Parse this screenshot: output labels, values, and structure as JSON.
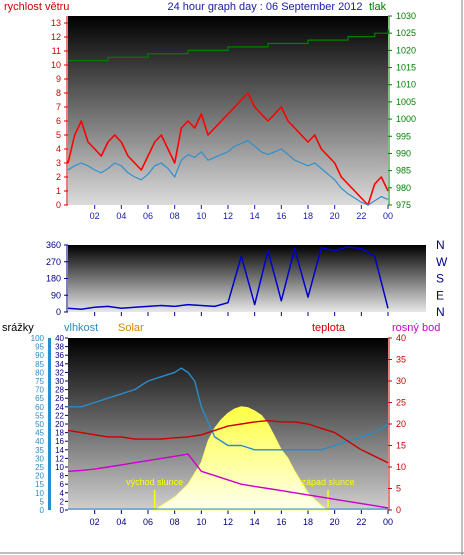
{
  "chart_data": [
    {
      "type": "line",
      "title": "24 hour graph day : 06 September 2012",
      "left_axis_label": "rychlost větru",
      "right_axis_label": "tlak",
      "x_ticks": [
        "02",
        "04",
        "06",
        "08",
        "10",
        "12",
        "14",
        "16",
        "18",
        "20",
        "22",
        "00"
      ],
      "left_ticks": [
        "0",
        "1",
        "2",
        "3",
        "4",
        "5",
        "6",
        "7",
        "8",
        "9",
        "10",
        "11",
        "12",
        "13"
      ],
      "right_ticks": [
        "975",
        "980",
        "985",
        "990",
        "995",
        "1000",
        "1005",
        "1010",
        "1015",
        "1020",
        "1025",
        "1030"
      ],
      "ylim_left": [
        0,
        13.5
      ],
      "ylim_right": [
        975,
        1030
      ],
      "colors": {
        "gust": "#ff0000",
        "speed": "#2f8fd0",
        "pressure": "#008000",
        "text_left": "#cc0000",
        "text_right": "#008000",
        "title": "#1a1aaa"
      },
      "series": [
        {
          "role": "gust",
          "x": [
            0,
            0.5,
            1,
            1.5,
            2,
            2.5,
            3,
            3.5,
            4,
            4.5,
            5,
            5.5,
            6,
            6.5,
            7,
            7.5,
            8,
            8.5,
            9,
            9.5,
            10,
            10.5,
            11,
            11.5,
            12,
            12.5,
            13,
            13.5,
            14,
            14.5,
            15,
            15.5,
            16,
            16.5,
            17,
            17.5,
            18,
            18.5,
            19,
            19.5,
            20,
            20.5,
            21,
            21.5,
            22,
            22.5,
            23,
            23.5,
            24
          ],
          "values": [
            3,
            5,
            6,
            4.5,
            4,
            3.5,
            4.5,
            5,
            4.5,
            3.5,
            3,
            2.5,
            3.5,
            4.5,
            5,
            4,
            3,
            5.5,
            6,
            5.5,
            6.5,
            5,
            5.5,
            6,
            6.5,
            7,
            7.5,
            8,
            7,
            6.5,
            6,
            6.5,
            7,
            6,
            5.5,
            5,
            4.5,
            5,
            4,
            3.5,
            3,
            2,
            1.5,
            1,
            0.5,
            0,
            1.5,
            2,
            1
          ]
        },
        {
          "role": "speed",
          "x": [
            0,
            0.5,
            1,
            1.5,
            2,
            2.5,
            3,
            3.5,
            4,
            4.5,
            5,
            5.5,
            6,
            6.5,
            7,
            7.5,
            8,
            8.5,
            9,
            9.5,
            10,
            10.5,
            11,
            11.5,
            12,
            12.5,
            13,
            13.5,
            14,
            14.5,
            15,
            15.5,
            16,
            16.5,
            17,
            17.5,
            18,
            18.5,
            19,
            19.5,
            20,
            20.5,
            21,
            21.5,
            22,
            22.5,
            23,
            23.5,
            24
          ],
          "values": [
            2.5,
            2.8,
            3,
            2.8,
            2.5,
            2.3,
            2.6,
            3,
            2.8,
            2.3,
            2,
            1.8,
            2.2,
            2.8,
            3,
            2.6,
            2,
            3.2,
            3.6,
            3.4,
            3.8,
            3.2,
            3.4,
            3.6,
            3.8,
            4.2,
            4.4,
            4.6,
            4.2,
            3.8,
            3.6,
            3.8,
            4,
            3.6,
            3.2,
            3,
            2.8,
            3,
            2.6,
            2.2,
            1.8,
            1.2,
            0.8,
            0.5,
            0.2,
            0,
            0.3,
            0.6,
            0.4
          ]
        },
        {
          "role": "pressure",
          "x": [
            0,
            2,
            3,
            5,
            6,
            8,
            9,
            11,
            12,
            14,
            15,
            17,
            18,
            20,
            21,
            22,
            23,
            24
          ],
          "values": [
            1017,
            1017,
            1018,
            1018,
            1019,
            1019,
            1020,
            1020,
            1021,
            1021,
            1022,
            1022,
            1023,
            1023,
            1024,
            1024,
            1025,
            1026
          ]
        }
      ]
    },
    {
      "type": "line",
      "title": "",
      "x_ticks": [
        "02",
        "04",
        "06",
        "08",
        "10",
        "12",
        "14",
        "16",
        "18",
        "20",
        "22",
        "00"
      ],
      "left_ticks": [
        "0",
        "90",
        "180",
        "270",
        "360"
      ],
      "right_ticks": [
        "N",
        "W",
        "S",
        "E",
        "N"
      ],
      "ylim_left": [
        0,
        360
      ],
      "colors": {
        "direction": "#0000cc",
        "text": "#000080"
      },
      "series": [
        {
          "role": "direction",
          "x": [
            0,
            1,
            2,
            3,
            4,
            5,
            6,
            7,
            8,
            9,
            10,
            11,
            12,
            13,
            14,
            15,
            16,
            17,
            18,
            19,
            20,
            21,
            22,
            23,
            24
          ],
          "values": [
            20,
            15,
            25,
            30,
            20,
            25,
            30,
            35,
            30,
            40,
            35,
            30,
            50,
            300,
            40,
            330,
            60,
            340,
            80,
            345,
            330,
            350,
            340,
            300,
            20
          ]
        }
      ]
    },
    {
      "type": "area",
      "title": "",
      "axis_labels": {
        "rain": "srážky",
        "humidity": "vlhkost",
        "solar": "Solar",
        "temperature": "teplota",
        "dewpoint": "rosný bod"
      },
      "x_ticks": [
        "02",
        "04",
        "06",
        "08",
        "10",
        "12",
        "14",
        "16",
        "18",
        "20",
        "22",
        "00"
      ],
      "rain_ticks": [
        "0",
        "5",
        "10",
        "15",
        "20",
        "25",
        "30",
        "35",
        "40",
        "45",
        "50",
        "55",
        "60",
        "65",
        "70",
        "75",
        "80",
        "85",
        "90",
        "95",
        "100"
      ],
      "temp_ticks_left": [
        "0",
        "2",
        "4",
        "6",
        "8",
        "10",
        "12",
        "14",
        "16",
        "18",
        "20",
        "22",
        "24",
        "26",
        "28",
        "30",
        "32",
        "34",
        "36",
        "38",
        "40"
      ],
      "temp_ticks_right": [
        "0",
        "5",
        "10",
        "15",
        "20",
        "25",
        "30",
        "35",
        "40"
      ],
      "ylim_left": [
        0,
        40
      ],
      "ylim_right": [
        0,
        40
      ],
      "annotations": [
        {
          "text": "východ slunce",
          "x": 6.5
        },
        {
          "text": "západ slunce",
          "x": 19.5
        }
      ],
      "colors": {
        "humidity": "#2a8cc8",
        "temperature": "#cc0000",
        "dewpoint": "#cc00cc",
        "solar": "#ffff66",
        "annotation": "#ffff00"
      },
      "series": [
        {
          "role": "humidity",
          "x": [
            0,
            1,
            2,
            3,
            4,
            5,
            6,
            7,
            8,
            8.5,
            9,
            9.5,
            10,
            11,
            12,
            13,
            14,
            15,
            16,
            17,
            18,
            19,
            20,
            21,
            22,
            23,
            24
          ],
          "values": [
            24,
            24,
            25,
            26,
            27,
            28,
            30,
            31,
            32,
            33,
            32,
            30,
            24,
            17,
            15,
            15,
            14,
            14,
            14,
            14,
            14,
            14,
            15,
            16,
            17,
            18,
            20
          ]
        },
        {
          "role": "temperature",
          "x": [
            0,
            1,
            2,
            3,
            4,
            5,
            6,
            7,
            8,
            9,
            10,
            11,
            12,
            13,
            14,
            15,
            16,
            17,
            18,
            19,
            20,
            21,
            22,
            23,
            24
          ],
          "values": [
            18.5,
            18,
            17.5,
            17,
            17,
            16.5,
            16.5,
            16.5,
            16.8,
            17,
            17.5,
            18.5,
            19.5,
            20,
            20.5,
            20.8,
            20.5,
            20.5,
            20,
            19,
            18,
            16,
            14,
            12.5,
            11
          ]
        },
        {
          "role": "dewpoint",
          "x": [
            0,
            1,
            2,
            3,
            4,
            5,
            6,
            7,
            8,
            9,
            9.5,
            10,
            11,
            12,
            13,
            14,
            15,
            16,
            17,
            18,
            19,
            20,
            21,
            22,
            23,
            24
          ],
          "values": [
            9,
            9.2,
            9.5,
            10,
            10.5,
            11,
            11.5,
            12,
            12.5,
            13,
            11,
            9,
            8,
            7,
            6,
            5.5,
            5,
            4.5,
            4,
            3.5,
            3,
            2.5,
            2,
            1.5,
            1,
            0.5
          ]
        },
        {
          "role": "solar",
          "x": [
            6.5,
            7,
            8,
            9,
            10,
            10.5,
            11,
            11.5,
            12,
            12.5,
            13,
            13.5,
            14,
            14.5,
            15,
            15.5,
            16,
            16.5,
            17,
            18,
            19,
            19.5
          ],
          "values": [
            0,
            1,
            3,
            6,
            11,
            16,
            19,
            21,
            22.5,
            23.5,
            24,
            23.8,
            23,
            22,
            20,
            17,
            14,
            12,
            9,
            4,
            1,
            0
          ]
        },
        {
          "role": "rain",
          "x": [
            0,
            24
          ],
          "values": [
            0,
            0
          ]
        }
      ]
    }
  ]
}
